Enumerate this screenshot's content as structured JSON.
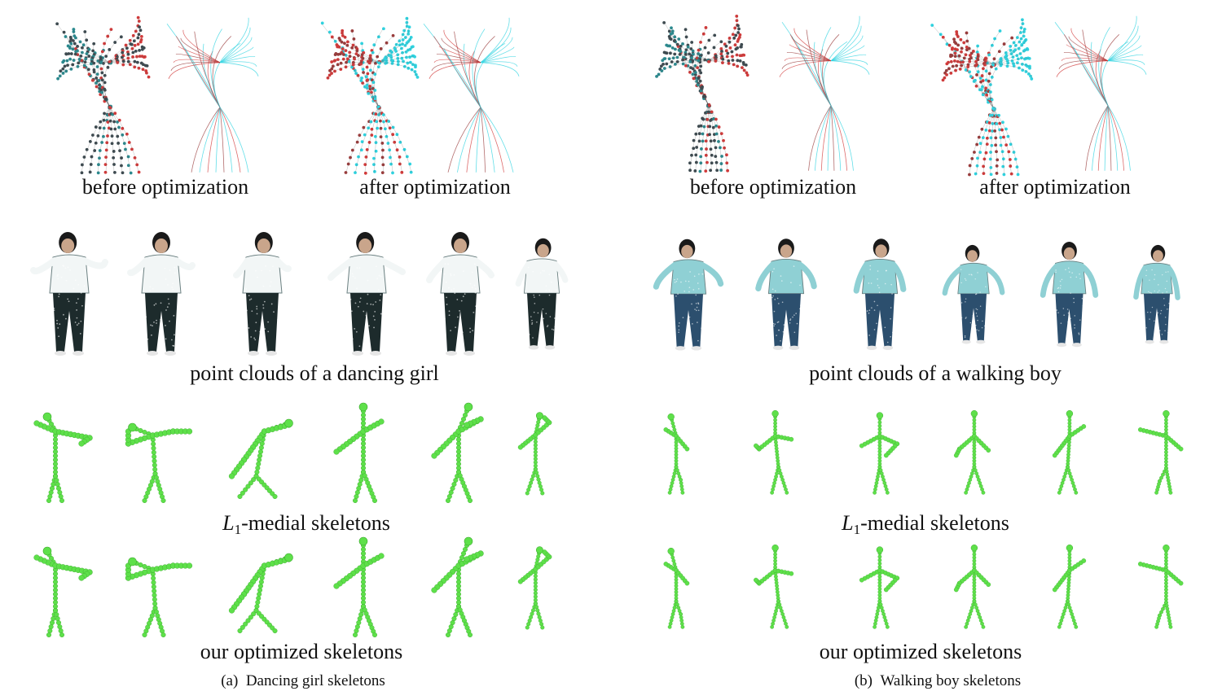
{
  "panel_a": {
    "before_label": "before optimization",
    "after_label": "after optimization",
    "point_clouds_label": "point clouds of a dancing girl",
    "medial_label_rest": "-medial skeletons",
    "optimized_label": "our optimized skeletons",
    "caption_tag": "(a)",
    "caption_text": "Dancing girl skeletons"
  },
  "panel_b": {
    "before_label": "before optimization",
    "after_label": "after optimization",
    "point_clouds_label": "point clouds of a walking boy",
    "medial_label_rest": "-medial skeletons",
    "optimized_label": "our optimized skeletons",
    "caption_tag": "(b)",
    "caption_text": "Walking boy skeletons"
  },
  "medial_symbol": "L",
  "medial_subscript": "1",
  "colors": {
    "cyan": "#2fd3e0",
    "red": "#d23a3a",
    "dark": "#3d4a50",
    "skeleton_green": "#5ee04a",
    "skeleton_red": "#d43030",
    "shirt_girl": "#f2f6f6",
    "pants_girl": "#1d2b2c",
    "shirt_boy": "#8fd0d4",
    "pants_boy": "#2c4f6e"
  }
}
